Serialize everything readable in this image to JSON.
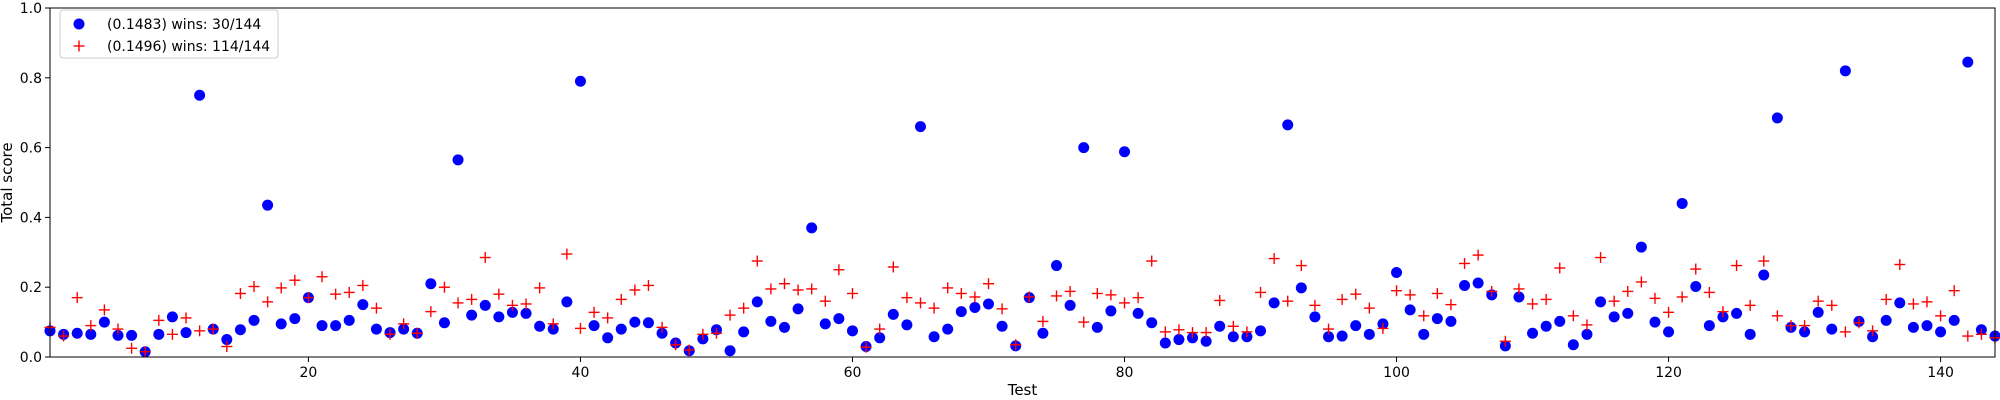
{
  "chart_data": {
    "type": "scatter",
    "title": "",
    "xlabel": "Test",
    "ylabel": "Total score",
    "xlim": [
      1,
      144
    ],
    "ylim": [
      0.0,
      1.0
    ],
    "x_ticks": [
      20,
      40,
      60,
      80,
      100,
      120,
      140
    ],
    "x_tick_labels": [
      "20",
      "40",
      "60",
      "80",
      "100",
      "120",
      "140"
    ],
    "y_ticks": [
      0.0,
      0.2,
      0.4,
      0.6,
      0.8,
      1.0
    ],
    "y_tick_labels": [
      "0.0",
      "0.2",
      "0.4",
      "0.6",
      "0.8",
      "1.0"
    ],
    "grid": false,
    "legend_position": "top-left",
    "series": [
      {
        "name": "(0.1483) wins: 30/144",
        "marker": "circle",
        "color": "#0000ff",
        "x": [
          1,
          2,
          3,
          4,
          5,
          6,
          7,
          8,
          9,
          10,
          11,
          12,
          13,
          14,
          15,
          16,
          17,
          18,
          19,
          20,
          21,
          22,
          23,
          24,
          25,
          26,
          27,
          28,
          29,
          30,
          31,
          32,
          33,
          34,
          35,
          36,
          37,
          38,
          39,
          40,
          41,
          42,
          43,
          44,
          45,
          46,
          47,
          48,
          49,
          50,
          51,
          52,
          53,
          54,
          55,
          56,
          57,
          58,
          59,
          60,
          61,
          62,
          63,
          64,
          65,
          66,
          67,
          68,
          69,
          70,
          71,
          72,
          73,
          74,
          75,
          76,
          77,
          78,
          79,
          80,
          81,
          82,
          83,
          84,
          85,
          86,
          87,
          88,
          89,
          90,
          91,
          92,
          93,
          94,
          95,
          96,
          97,
          98,
          99,
          100,
          101,
          102,
          103,
          104,
          105,
          106,
          107,
          108,
          109,
          110,
          111,
          112,
          113,
          114,
          115,
          116,
          117,
          118,
          119,
          120,
          121,
          122,
          123,
          124,
          125,
          126,
          127,
          128,
          129,
          130,
          131,
          132,
          133,
          134,
          135,
          136,
          137,
          138,
          139,
          140,
          141,
          142,
          143,
          144
        ],
        "y": [
          0.075,
          0.065,
          0.068,
          0.065,
          0.1,
          0.062,
          0.062,
          0.015,
          0.065,
          0.115,
          0.07,
          0.75,
          0.08,
          0.05,
          0.078,
          0.105,
          0.435,
          0.095,
          0.11,
          0.17,
          0.09,
          0.09,
          0.105,
          0.15,
          0.08,
          0.07,
          0.08,
          0.068,
          0.21,
          0.098,
          0.565,
          0.12,
          0.148,
          0.115,
          0.128,
          0.125,
          0.088,
          0.08,
          0.158,
          0.79,
          0.09,
          0.055,
          0.08,
          0.1,
          0.098,
          0.068,
          0.04,
          0.018,
          0.052,
          0.078,
          0.018,
          0.072,
          0.158,
          0.102,
          0.085,
          0.138,
          0.37,
          0.095,
          0.11,
          0.075,
          0.03,
          0.055,
          0.122,
          0.092,
          0.66,
          0.058,
          0.08,
          0.13,
          0.142,
          0.152,
          0.088,
          0.032,
          0.17,
          0.068,
          0.262,
          0.148,
          0.6,
          0.085,
          0.132,
          0.588,
          0.125,
          0.098,
          0.04,
          0.05,
          0.055,
          0.045,
          0.088,
          0.058,
          0.058,
          0.075,
          0.155,
          0.665,
          0.198,
          0.115,
          0.058,
          0.06,
          0.09,
          0.065,
          0.095,
          0.242,
          0.135,
          0.065,
          0.11,
          0.102,
          0.205,
          0.212,
          0.178,
          0.032,
          0.172,
          0.068,
          0.088,
          0.102,
          0.035,
          0.065,
          0.158,
          0.115,
          0.125,
          0.315,
          0.1,
          0.072,
          0.44,
          0.202,
          0.09,
          0.115,
          0.125,
          0.065,
          0.235,
          0.685,
          0.085,
          0.072,
          0.128,
          0.08,
          0.82,
          0.102,
          0.058,
          0.105,
          0.155,
          0.085,
          0.09,
          0.072,
          0.105,
          0.845,
          0.078,
          0.06
        ]
      },
      {
        "name": "(0.1496) wins: 114/144",
        "marker": "plus",
        "color": "#ff0000",
        "x": [
          1,
          2,
          3,
          4,
          5,
          6,
          7,
          8,
          9,
          10,
          11,
          12,
          13,
          14,
          15,
          16,
          17,
          18,
          19,
          20,
          21,
          22,
          23,
          24,
          25,
          26,
          27,
          28,
          29,
          30,
          31,
          32,
          33,
          34,
          35,
          36,
          37,
          38,
          39,
          40,
          41,
          42,
          43,
          44,
          45,
          46,
          47,
          48,
          49,
          50,
          51,
          52,
          53,
          54,
          55,
          56,
          57,
          58,
          59,
          60,
          61,
          62,
          63,
          64,
          65,
          66,
          67,
          68,
          69,
          70,
          71,
          72,
          73,
          74,
          75,
          76,
          77,
          78,
          79,
          80,
          81,
          82,
          83,
          84,
          85,
          86,
          87,
          88,
          89,
          90,
          91,
          92,
          93,
          94,
          95,
          96,
          97,
          98,
          99,
          100,
          101,
          102,
          103,
          104,
          105,
          106,
          107,
          108,
          109,
          110,
          111,
          112,
          113,
          114,
          115,
          116,
          117,
          118,
          119,
          120,
          121,
          122,
          123,
          124,
          125,
          126,
          127,
          128,
          129,
          130,
          131,
          132,
          133,
          134,
          135,
          136,
          137,
          138,
          139,
          140,
          141,
          142,
          143,
          144
        ],
        "y": [
          0.085,
          0.06,
          0.17,
          0.09,
          0.135,
          0.08,
          0.025,
          0.015,
          0.105,
          0.065,
          0.112,
          0.075,
          0.08,
          0.03,
          0.182,
          0.202,
          0.158,
          0.198,
          0.22,
          0.17,
          0.23,
          0.18,
          0.185,
          0.205,
          0.14,
          0.065,
          0.095,
          0.068,
          0.13,
          0.2,
          0.155,
          0.165,
          0.285,
          0.18,
          0.148,
          0.152,
          0.198,
          0.095,
          0.295,
          0.082,
          0.128,
          0.112,
          0.165,
          0.192,
          0.205,
          0.085,
          0.035,
          0.02,
          0.065,
          0.068,
          0.12,
          0.14,
          0.275,
          0.195,
          0.21,
          0.192,
          0.195,
          0.16,
          0.25,
          0.182,
          0.028,
          0.08,
          0.258,
          0.17,
          0.155,
          0.14,
          0.198,
          0.182,
          0.172,
          0.21,
          0.138,
          0.035,
          0.172,
          0.102,
          0.175,
          0.188,
          0.1,
          0.182,
          0.178,
          0.155,
          0.17,
          0.275,
          0.072,
          0.078,
          0.07,
          0.07,
          0.162,
          0.088,
          0.072,
          0.185,
          0.282,
          0.16,
          0.262,
          0.148,
          0.08,
          0.165,
          0.18,
          0.14,
          0.082,
          0.19,
          0.178,
          0.118,
          0.182,
          0.15,
          0.268,
          0.292,
          0.188,
          0.045,
          0.195,
          0.152,
          0.165,
          0.255,
          0.118,
          0.092,
          0.285,
          0.16,
          0.188,
          0.215,
          0.168,
          0.128,
          0.172,
          0.252,
          0.185,
          0.13,
          0.262,
          0.148,
          0.275,
          0.118,
          0.09,
          0.09,
          0.16,
          0.148,
          0.072,
          0.098,
          0.075,
          0.165,
          0.265,
          0.152,
          0.158,
          0.118,
          0.19,
          0.06,
          0.065,
          0.055
        ]
      }
    ]
  }
}
